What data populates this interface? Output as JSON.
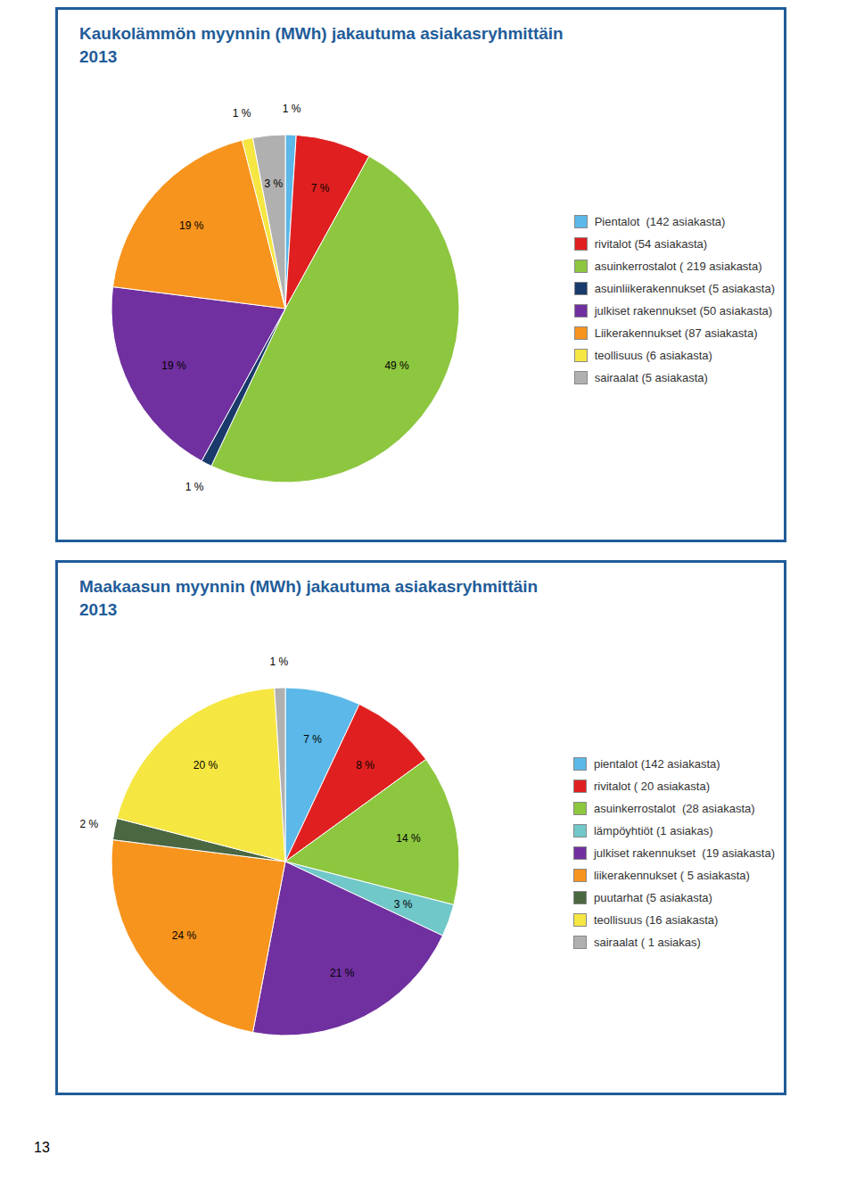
{
  "chart_data": [
    {
      "type": "pie",
      "title": "Kaukolämmön myynnin (MWh) jakautuma asiakasryhmittäin\n2013",
      "categories": [
        "Pientalot  (142 asiakasta)",
        "rivitalot (54 asiakasta)",
        "asuinkerrostalot ( 219 asiakasta)",
        "asuinliikerakennukset (5 asiakasta)",
        "julkiset rakennukset (50 asiakasta)",
        "Liikerakennukset (87 asiakasta)",
        "teollisuus (6 asiakasta)",
        "sairaalat (5 asiakasta)"
      ],
      "values": [
        1,
        7,
        49,
        1,
        19,
        19,
        1,
        3
      ],
      "value_labels": [
        "1 %",
        "7 %",
        "49 %",
        "1 %",
        "19 %",
        "19 %",
        "1 %",
        "3 %"
      ],
      "colors": [
        "#5BB8E8",
        "#E02020",
        "#8DC63F",
        "#1A3A6B",
        "#7030A0",
        "#F7941D",
        "#F5E642",
        "#B0B0B0"
      ],
      "data_labels": true,
      "legend": "right"
    },
    {
      "type": "pie",
      "title": "Maakaasun myynnin (MWh) jakautuma asiakasryhmittäin\n2013",
      "categories": [
        "pientalot (142 asiakasta)",
        "rivitalot ( 20 asiakasta)",
        "asuinkerrostalot  (28 asiakasta)",
        "lämpöyhtiöt (1 asiakas)",
        "julkiset rakennukset  (19 asiakasta)",
        "liikerakennukset ( 5 asiakasta)",
        "puutarhat (5 asiakasta)",
        "teollisuus (16 asiakasta)",
        "sairaalat ( 1 asiakas)"
      ],
      "values": [
        7,
        8,
        14,
        3,
        21,
        24,
        2,
        20,
        1
      ],
      "value_labels": [
        "7 %",
        "8 %",
        "14 %",
        "3 %",
        "21 %",
        "24 %",
        "2 %",
        "20 %",
        "1 %"
      ],
      "colors": [
        "#5BB8E8",
        "#E02020",
        "#8DC63F",
        "#70C8C8",
        "#7030A0",
        "#F7941D",
        "#4A6741",
        "#F5E642",
        "#B0B0B0"
      ],
      "data_labels": true,
      "legend": "right",
      "annotations": [
        "13"
      ]
    }
  ]
}
